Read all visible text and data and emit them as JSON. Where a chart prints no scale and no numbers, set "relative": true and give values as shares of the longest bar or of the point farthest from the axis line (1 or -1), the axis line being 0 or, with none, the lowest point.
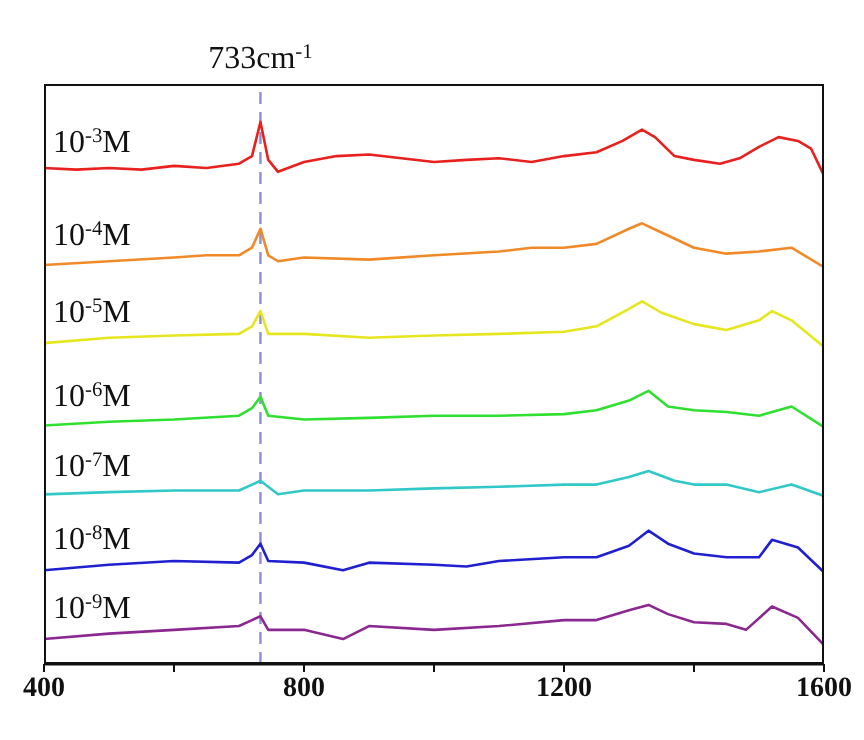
{
  "chart_data": {
    "type": "line",
    "relative": true,
    "xlim": [
      400,
      1600
    ],
    "xticks": [
      400,
      {
        "value": 600,
        "label": null
      },
      800,
      {
        "value": 1000,
        "label": null
      },
      1200,
      {
        "value": 1400,
        "label": null
      },
      1600
    ],
    "marker": "none",
    "line_style": "solid",
    "ref_lines": [
      {
        "axis": "x",
        "value": 733,
        "label": "733cm$^{-1}$",
        "color": "#8c8cd8",
        "line_style": "dashed"
      }
    ],
    "series": [
      {
        "name": "10$^{-3}$M",
        "color": "#e8201e",
        "x": [
          400,
          450,
          500,
          550,
          600,
          650,
          700,
          720,
          733,
          745,
          760,
          800,
          850,
          900,
          950,
          1000,
          1050,
          1100,
          1150,
          1200,
          1250,
          1290,
          1320,
          1340,
          1370,
          1400,
          1440,
          1470,
          1500,
          1530,
          1560,
          1580,
          1600
        ],
        "values": [
          0.915,
          0.912,
          0.915,
          0.912,
          0.919,
          0.915,
          0.923,
          0.937,
          1,
          0.93,
          0.908,
          0.926,
          0.937,
          0.94,
          0.933,
          0.926,
          0.93,
          0.933,
          0.926,
          0.937,
          0.944,
          0.965,
          0.986,
          0.972,
          0.937,
          0.93,
          0.923,
          0.933,
          0.954,
          0.972,
          0.965,
          0.951,
          0.901
        ]
      },
      {
        "name": "10$^{-4}$M",
        "color": "#f08a28",
        "x": [
          400,
          500,
          600,
          650,
          700,
          720,
          733,
          745,
          760,
          800,
          900,
          1000,
          1100,
          1150,
          1200,
          1250,
          1300,
          1320,
          1350,
          1400,
          1450,
          1500,
          1550,
          1600
        ],
        "values": [
          0.736,
          0.743,
          0.75,
          0.754,
          0.754,
          0.768,
          0.803,
          0.754,
          0.743,
          0.75,
          0.746,
          0.754,
          0.761,
          0.768,
          0.768,
          0.775,
          0.803,
          0.813,
          0.796,
          0.768,
          0.757,
          0.761,
          0.768,
          0.732
        ]
      },
      {
        "name": "10$^{-5}$M",
        "color": "#e6e61e",
        "x": [
          400,
          500,
          600,
          700,
          720,
          733,
          745,
          800,
          900,
          1000,
          1100,
          1200,
          1250,
          1300,
          1320,
          1350,
          1400,
          1450,
          1500,
          1520,
          1550,
          1600
        ],
        "values": [
          0.592,
          0.602,
          0.606,
          0.609,
          0.623,
          0.651,
          0.609,
          0.609,
          0.602,
          0.606,
          0.609,
          0.613,
          0.623,
          0.655,
          0.669,
          0.648,
          0.627,
          0.616,
          0.634,
          0.651,
          0.634,
          0.585
        ]
      },
      {
        "name": "10$^{-6}$M",
        "color": "#30e030",
        "x": [
          400,
          500,
          600,
          700,
          720,
          733,
          745,
          800,
          900,
          1000,
          1100,
          1200,
          1250,
          1300,
          1330,
          1360,
          1400,
          1450,
          1500,
          1550,
          1600
        ],
        "values": [
          0.44,
          0.447,
          0.451,
          0.458,
          0.472,
          0.493,
          0.458,
          0.451,
          0.454,
          0.458,
          0.458,
          0.461,
          0.468,
          0.486,
          0.504,
          0.475,
          0.468,
          0.465,
          0.458,
          0.475,
          0.437
        ]
      },
      {
        "name": "10$^{-7}$M",
        "color": "#30c8c8",
        "x": [
          400,
          500,
          600,
          700,
          733,
          760,
          800,
          900,
          1000,
          1100,
          1200,
          1250,
          1300,
          1330,
          1370,
          1400,
          1450,
          1500,
          1550,
          1600
        ],
        "values": [
          0.313,
          0.317,
          0.32,
          0.32,
          0.338,
          0.313,
          0.32,
          0.32,
          0.324,
          0.327,
          0.331,
          0.331,
          0.345,
          0.356,
          0.338,
          0.331,
          0.331,
          0.317,
          0.331,
          0.31
        ]
      },
      {
        "name": "10$^{-8}$M",
        "color": "#2020d0",
        "x": [
          400,
          500,
          600,
          700,
          720,
          733,
          745,
          800,
          860,
          900,
          1000,
          1050,
          1100,
          1200,
          1250,
          1300,
          1330,
          1360,
          1400,
          1450,
          1500,
          1520,
          1560,
          1600
        ],
        "values": [
          0.173,
          0.183,
          0.19,
          0.187,
          0.201,
          0.222,
          0.19,
          0.187,
          0.173,
          0.187,
          0.183,
          0.18,
          0.19,
          0.197,
          0.197,
          0.218,
          0.246,
          0.222,
          0.204,
          0.197,
          0.197,
          0.229,
          0.215,
          0.169
        ]
      },
      {
        "name": "10$^{-9}$M",
        "color": "#8b2890",
        "x": [
          400,
          500,
          600,
          700,
          720,
          733,
          745,
          800,
          860,
          900,
          1000,
          1100,
          1200,
          1250,
          1300,
          1330,
          1360,
          1400,
          1450,
          1480,
          1520,
          1560,
          1600
        ],
        "values": [
          0.046,
          0.056,
          0.063,
          0.07,
          0.081,
          0.088,
          0.063,
          0.063,
          0.046,
          0.07,
          0.063,
          0.07,
          0.081,
          0.081,
          0.099,
          0.109,
          0.092,
          0.077,
          0.074,
          0.063,
          0.106,
          0.085,
          0.035
        ]
      }
    ]
  }
}
